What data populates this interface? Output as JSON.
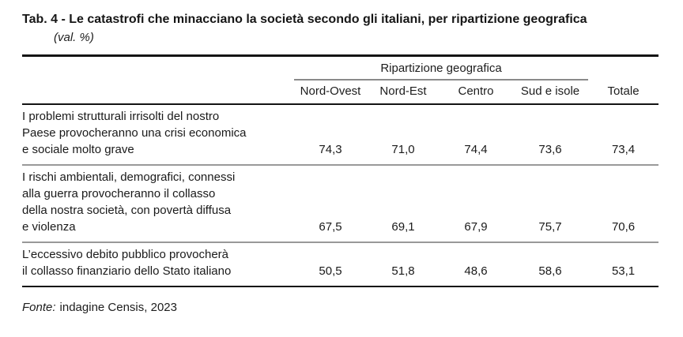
{
  "header": {
    "title": "Tab. 4 - Le catastrofi che minacciano la società secondo gli italiani, per ripartizione geografica",
    "subtitle": "(val. %)"
  },
  "table": {
    "group_header": "Ripartizione geografica",
    "columns": [
      "Nord-Ovest",
      "Nord-Est",
      "Centro",
      "Sud e isole",
      "Totale"
    ],
    "rows": [
      {
        "lines": [
          "I problemi strutturali irrisolti del nostro",
          "Paese provocheranno una crisi economica",
          "e sociale molto grave"
        ],
        "values": [
          "74,3",
          "71,0",
          "74,4",
          "73,6",
          "73,4"
        ]
      },
      {
        "lines": [
          "I rischi ambientali, demografici, connessi",
          "alla guerra provocheranno il collasso",
          "della nostra società, con povertà diffusa",
          "e violenza"
        ],
        "values": [
          "67,5",
          "69,1",
          "67,9",
          "75,7",
          "70,6"
        ]
      },
      {
        "lines": [
          "L’eccessivo debito pubblico provocherà",
          "il collasso finanziario dello Stato italiano"
        ],
        "values": [
          "50,5",
          "51,8",
          "48,6",
          "58,6",
          "53,1"
        ]
      }
    ]
  },
  "footer": {
    "source_label": "Fonte:",
    "source_text": "indagine Censis, 2023"
  },
  "colors": {
    "text": "#1a1a1a",
    "rule_dark": "#141414",
    "rule_gray": "#999999",
    "group_rule_gray": "#8a8a8a",
    "background": "#ffffff"
  },
  "chart_data": {
    "type": "table",
    "title": "Tab. 4 - Le catastrofi che minacciano la società secondo gli italiani, per ripartizione geografica (val. %)",
    "group_header": "Ripartizione geografica",
    "columns": [
      "Nord-Ovest",
      "Nord-Est",
      "Centro",
      "Sud e isole",
      "Totale"
    ],
    "rows": [
      {
        "label": "I problemi strutturali irrisolti del nostro Paese provocheranno una crisi economica e sociale molto grave",
        "values": [
          74.3,
          71.0,
          74.4,
          73.6,
          73.4
        ]
      },
      {
        "label": "I rischi ambientali, demografici, connessi alla guerra provocheranno il collasso della nostra società, con povertà diffusa e violenza",
        "values": [
          67.5,
          69.1,
          67.9,
          75.7,
          70.6
        ]
      },
      {
        "label": "L’eccessivo debito pubblico provocherà il collasso finanziario dello Stato italiano",
        "values": [
          50.5,
          51.8,
          48.6,
          58.6,
          53.1
        ]
      }
    ],
    "source": "Fonte: indagine Censis, 2023"
  }
}
